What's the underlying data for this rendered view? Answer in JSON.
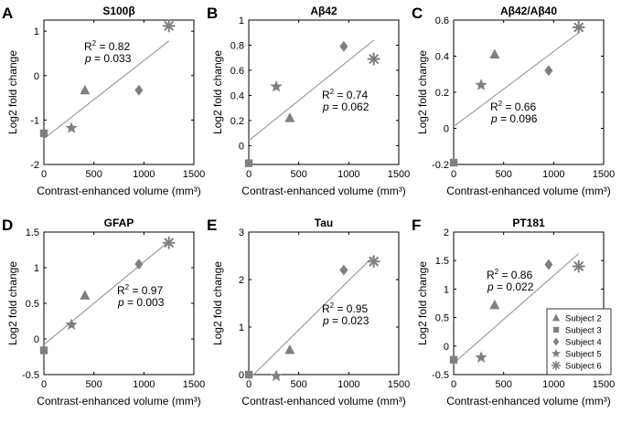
{
  "figure": {
    "subjects": [
      "Subject 2",
      "Subject 3",
      "Subject 4",
      "Subject 5",
      "Subject 6"
    ],
    "marker_color": "#7f7f7f",
    "fit_color": "#9e9e9e"
  },
  "chart_data": [
    {
      "type": "scatter",
      "letter": "A",
      "title": "S100β",
      "xlabel": "Contrast-enhanced volume (mm³)",
      "ylabel": "Log2 fold change",
      "xlim": [
        0,
        1500
      ],
      "ylim": [
        -2,
        1.25
      ],
      "xticks": [
        0,
        500,
        1000,
        1500
      ],
      "yticks": [
        -2,
        -1,
        0,
        1
      ],
      "xtick_labels": [
        "0",
        "500",
        "1000",
        "1500"
      ],
      "ytick_labels": [
        "-2",
        "-1",
        "0",
        "1"
      ],
      "points": [
        {
          "subject": "Subject 2",
          "x": 410,
          "y": -0.33
        },
        {
          "subject": "Subject 3",
          "x": 0,
          "y": -1.3
        },
        {
          "subject": "Subject 4",
          "x": 950,
          "y": -0.33
        },
        {
          "subject": "Subject 5",
          "x": 275,
          "y": -1.18
        },
        {
          "subject": "Subject 6",
          "x": 1250,
          "y": 1.12
        }
      ],
      "fit": {
        "x0": 0,
        "y0": -1.42,
        "x1": 1250,
        "y1": 0.78
      },
      "r2": "0.82",
      "p": "0.033"
    },
    {
      "type": "scatter",
      "letter": "B",
      "title": "Aβ42",
      "xlabel": "Contrast-enhanced volume (mm³)",
      "ylabel": "Log2 fold change",
      "xlim": [
        0,
        1500
      ],
      "ylim": [
        -0.15,
        1.0
      ],
      "xticks": [
        0,
        500,
        1000,
        1500
      ],
      "yticks": [
        0,
        0.2,
        0.4,
        0.6,
        0.8,
        1
      ],
      "xtick_labels": [
        "0",
        "500",
        "1000",
        "1500"
      ],
      "ytick_labels": [
        "0",
        "0.2",
        "0.4",
        "0.6",
        "0.8",
        "1"
      ],
      "points": [
        {
          "subject": "Subject 2",
          "x": 410,
          "y": 0.22
        },
        {
          "subject": "Subject 3",
          "x": 0,
          "y": -0.14
        },
        {
          "subject": "Subject 4",
          "x": 950,
          "y": 0.79
        },
        {
          "subject": "Subject 5",
          "x": 275,
          "y": 0.47
        },
        {
          "subject": "Subject 6",
          "x": 1250,
          "y": 0.69
        }
      ],
      "fit": {
        "x0": 0,
        "y0": 0.04,
        "x1": 1250,
        "y1": 0.84
      },
      "r2": "0.74",
      "p": "0.062"
    },
    {
      "type": "scatter",
      "letter": "C",
      "title": "Aβ42/Aβ40",
      "xlabel": "Contrast-enhanced volume (mm³)",
      "ylabel": "Log2 fold change",
      "xlim": [
        0,
        1500
      ],
      "ylim": [
        -0.2,
        0.6
      ],
      "xticks": [
        0,
        500,
        1000,
        1500
      ],
      "yticks": [
        -0.2,
        0,
        0.2,
        0.4,
        0.6
      ],
      "xtick_labels": [
        "0",
        "500",
        "1000",
        "1500"
      ],
      "ytick_labels": [
        "-0.2",
        "0",
        "0.2",
        "0.4",
        "0.6"
      ],
      "points": [
        {
          "subject": "Subject 2",
          "x": 410,
          "y": 0.41
        },
        {
          "subject": "Subject 3",
          "x": 0,
          "y": -0.19
        },
        {
          "subject": "Subject 4",
          "x": 950,
          "y": 0.32
        },
        {
          "subject": "Subject 5",
          "x": 275,
          "y": 0.24
        },
        {
          "subject": "Subject 6",
          "x": 1250,
          "y": 0.56
        }
      ],
      "fit": {
        "x0": 0,
        "y0": 0.01,
        "x1": 1250,
        "y1": 0.53
      },
      "r2": "0.66",
      "p": "0.096"
    },
    {
      "type": "scatter",
      "letter": "D",
      "title": "GFAP",
      "xlabel": "Contrast-enhanced volume (mm³)",
      "ylabel": "Log2 fold change",
      "xlim": [
        0,
        1500
      ],
      "ylim": [
        -0.5,
        1.5
      ],
      "xticks": [
        0,
        500,
        1000,
        1500
      ],
      "yticks": [
        -0.5,
        0,
        0.5,
        1,
        1.5
      ],
      "xtick_labels": [
        "0",
        "500",
        "1000",
        "1500"
      ],
      "ytick_labels": [
        "-0.5",
        "0",
        "0.5",
        "1",
        "1.5"
      ],
      "points": [
        {
          "subject": "Subject 2",
          "x": 410,
          "y": 0.61
        },
        {
          "subject": "Subject 3",
          "x": 0,
          "y": -0.16
        },
        {
          "subject": "Subject 4",
          "x": 950,
          "y": 1.05
        },
        {
          "subject": "Subject 5",
          "x": 275,
          "y": 0.2
        },
        {
          "subject": "Subject 6",
          "x": 1250,
          "y": 1.35
        }
      ],
      "fit": {
        "x0": 0,
        "y0": -0.08,
        "x1": 1250,
        "y1": 1.37
      },
      "r2": "0.97",
      "p": "0.003"
    },
    {
      "type": "scatter",
      "letter": "E",
      "title": "Tau",
      "xlabel": "Contrast-enhanced volume (mm³)",
      "ylabel": "Log2 fold change",
      "xlim": [
        0,
        1500
      ],
      "ylim": [
        0,
        3
      ],
      "xticks": [
        0,
        500,
        1000,
        1500
      ],
      "yticks": [
        0,
        1,
        2,
        3
      ],
      "xtick_labels": [
        "0",
        "500",
        "1000",
        "1500"
      ],
      "ytick_labels": [
        "0",
        "1",
        "2",
        "3"
      ],
      "points": [
        {
          "subject": "Subject 2",
          "x": 410,
          "y": 0.52
        },
        {
          "subject": "Subject 3",
          "x": 0,
          "y": 0.0
        },
        {
          "subject": "Subject 4",
          "x": 950,
          "y": 2.2
        },
        {
          "subject": "Subject 5",
          "x": 275,
          "y": -0.03
        },
        {
          "subject": "Subject 6",
          "x": 1250,
          "y": 2.38
        }
      ],
      "fit": {
        "x0": 0,
        "y0": -0.1,
        "x1": 1250,
        "y1": 2.5
      },
      "r2": "0.95",
      "p": "0.023"
    },
    {
      "type": "scatter",
      "letter": "F",
      "title": "PT181",
      "xlabel": "Contrast-enhanced volume (mm³)",
      "ylabel": "Log2 fold change",
      "xlim": [
        0,
        1500
      ],
      "ylim": [
        -0.5,
        2
      ],
      "xticks": [
        0,
        500,
        1000,
        1500
      ],
      "yticks": [
        -0.5,
        0,
        0.5,
        1,
        1.5,
        2
      ],
      "xtick_labels": [
        "0",
        "500",
        "1000",
        "1500"
      ],
      "ytick_labels": [
        "-0.5",
        "0",
        "0.5",
        "1",
        "1.5",
        "2"
      ],
      "points": [
        {
          "subject": "Subject 2",
          "x": 410,
          "y": 0.72
        },
        {
          "subject": "Subject 3",
          "x": 0,
          "y": -0.24
        },
        {
          "subject": "Subject 4",
          "x": 950,
          "y": 1.43
        },
        {
          "subject": "Subject 5",
          "x": 275,
          "y": -0.2
        },
        {
          "subject": "Subject 6",
          "x": 1250,
          "y": 1.4
        }
      ],
      "fit": {
        "x0": 0,
        "y0": -0.3,
        "x1": 1250,
        "y1": 1.62
      },
      "r2": "0.86",
      "p": "0.022",
      "legend": {
        "placement": "bottom-right"
      }
    }
  ]
}
